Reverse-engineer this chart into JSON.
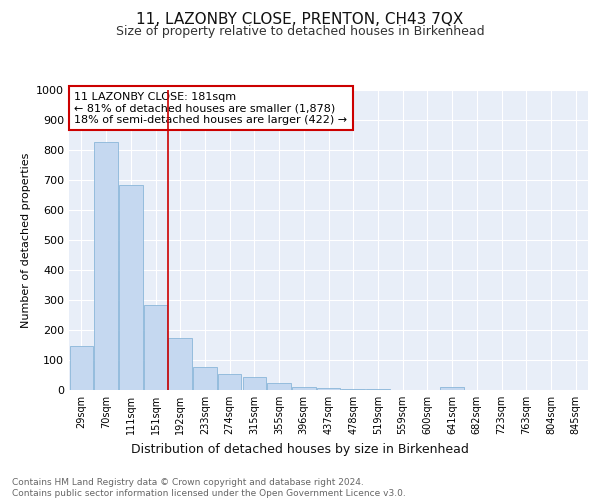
{
  "title": "11, LAZONBY CLOSE, PRENTON, CH43 7QX",
  "subtitle": "Size of property relative to detached houses in Birkenhead",
  "xlabel": "Distribution of detached houses by size in Birkenhead",
  "ylabel": "Number of detached properties",
  "bar_labels": [
    "29sqm",
    "70sqm",
    "111sqm",
    "151sqm",
    "192sqm",
    "233sqm",
    "274sqm",
    "315sqm",
    "355sqm",
    "396sqm",
    "437sqm",
    "478sqm",
    "519sqm",
    "559sqm",
    "600sqm",
    "641sqm",
    "682sqm",
    "723sqm",
    "763sqm",
    "804sqm",
    "845sqm"
  ],
  "bar_values": [
    148,
    828,
    685,
    283,
    172,
    78,
    54,
    42,
    22,
    11,
    8,
    5,
    3,
    0,
    0,
    10,
    0,
    0,
    0,
    0,
    0
  ],
  "bar_color": "#c5d8f0",
  "bar_edge_color": "#7badd4",
  "vline_x": 4,
  "vline_color": "#cc0000",
  "annotation_text": "11 LAZONBY CLOSE: 181sqm\n← 81% of detached houses are smaller (1,878)\n18% of semi-detached houses are larger (422) →",
  "annotation_box_color": "#ffffff",
  "annotation_box_edge": "#cc0000",
  "fig_bg_color": "#ffffff",
  "plot_bg_color": "#e8eef8",
  "grid_color": "#ffffff",
  "footer": "Contains HM Land Registry data © Crown copyright and database right 2024.\nContains public sector information licensed under the Open Government Licence v3.0.",
  "ylim": [
    0,
    1000
  ],
  "yticks": [
    0,
    100,
    200,
    300,
    400,
    500,
    600,
    700,
    800,
    900,
    1000
  ],
  "title_fontsize": 11,
  "subtitle_fontsize": 9,
  "xlabel_fontsize": 9,
  "ylabel_fontsize": 8,
  "tick_fontsize": 8,
  "xtick_fontsize": 7,
  "footer_fontsize": 6.5,
  "annot_fontsize": 8
}
